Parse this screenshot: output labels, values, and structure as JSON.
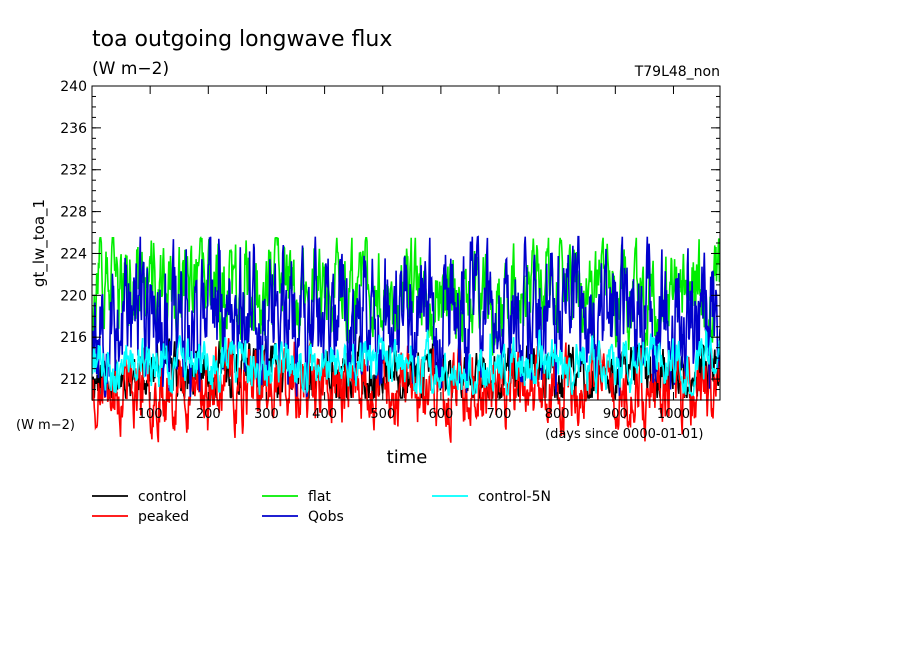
{
  "chart_data": {
    "type": "line",
    "title": "toa outgoing longwave flux",
    "subtitle": "(W m−2)",
    "annotation_right": "T79L48_non",
    "xlabel": "time",
    "xunit": "(days since 0000-01-01)",
    "ylabel": "gt_lw_toa_1",
    "yunit": "(W m−2)",
    "xlim": [
      0,
      1080
    ],
    "ylim": [
      210,
      240
    ],
    "yticks": [
      212,
      216,
      220,
      224,
      228,
      232,
      236,
      240
    ],
    "yminor_step": 1,
    "xticks": [
      100,
      200,
      300,
      400,
      500,
      600,
      700,
      800,
      900,
      1000
    ],
    "grid": false,
    "legend_position": "bottom-left",
    "series": [
      {
        "name": "control",
        "color": "#000000",
        "mean": 212.2,
        "spread": 1.8,
        "min": 210.2,
        "max": 218.5,
        "seed": 11
      },
      {
        "name": "peaked",
        "color": "#ff0000",
        "mean": 211.2,
        "spread": 2.3,
        "min": 205.8,
        "max": 219.5,
        "seed": 23
      },
      {
        "name": "flat",
        "color": "#00ee00",
        "mean": 220.5,
        "spread": 3.0,
        "min": 213.0,
        "max": 225.5,
        "seed": 37
      },
      {
        "name": "Qobs",
        "color": "#0000cc",
        "mean": 218.0,
        "spread": 4.2,
        "min": 210.3,
        "max": 225.6,
        "seed": 53
      },
      {
        "name": "control-5N",
        "color": "#00ffff",
        "mean": 213.3,
        "spread": 1.5,
        "min": 210.5,
        "max": 221.5,
        "seed": 71
      }
    ]
  }
}
